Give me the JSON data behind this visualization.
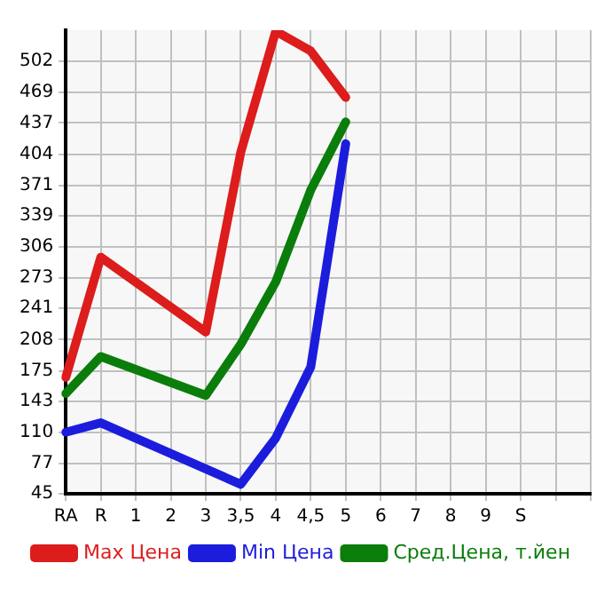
{
  "chart_data": {
    "type": "line",
    "categories": [
      "RA",
      "R",
      "1",
      "2",
      "3",
      "3,5",
      "4",
      "4,5",
      "5",
      "6",
      "7",
      "8",
      "9",
      "S",
      null,
      null
    ],
    "series": [
      {
        "name": "Max Цена",
        "color": "#dd1c1c",
        "values": [
          168,
          295,
          null,
          null,
          216,
          406,
          534,
          513,
          464,
          null,
          null,
          null,
          null,
          null,
          null,
          null
        ]
      },
      {
        "name": "Min Цена",
        "color": "#1c1cdd",
        "values": [
          110,
          120,
          null,
          null,
          null,
          55,
          104,
          179,
          415,
          null,
          null,
          null,
          null,
          null,
          null,
          null
        ]
      },
      {
        "name": "Сред.Цена, т.йен",
        "color": "#0a7d0a",
        "values": [
          151,
          190,
          null,
          null,
          149,
          203,
          269,
          366,
          438,
          null,
          null,
          null,
          null,
          null,
          null,
          null
        ]
      }
    ],
    "ylim": [
      45,
      535
    ],
    "yticks": [
      45,
      77,
      110,
      143,
      175,
      208,
      241,
      273,
      306,
      339,
      371,
      404,
      437,
      469,
      502
    ],
    "grid": true,
    "legend": "bottom",
    "marker": "none",
    "line_style": "solid"
  }
}
